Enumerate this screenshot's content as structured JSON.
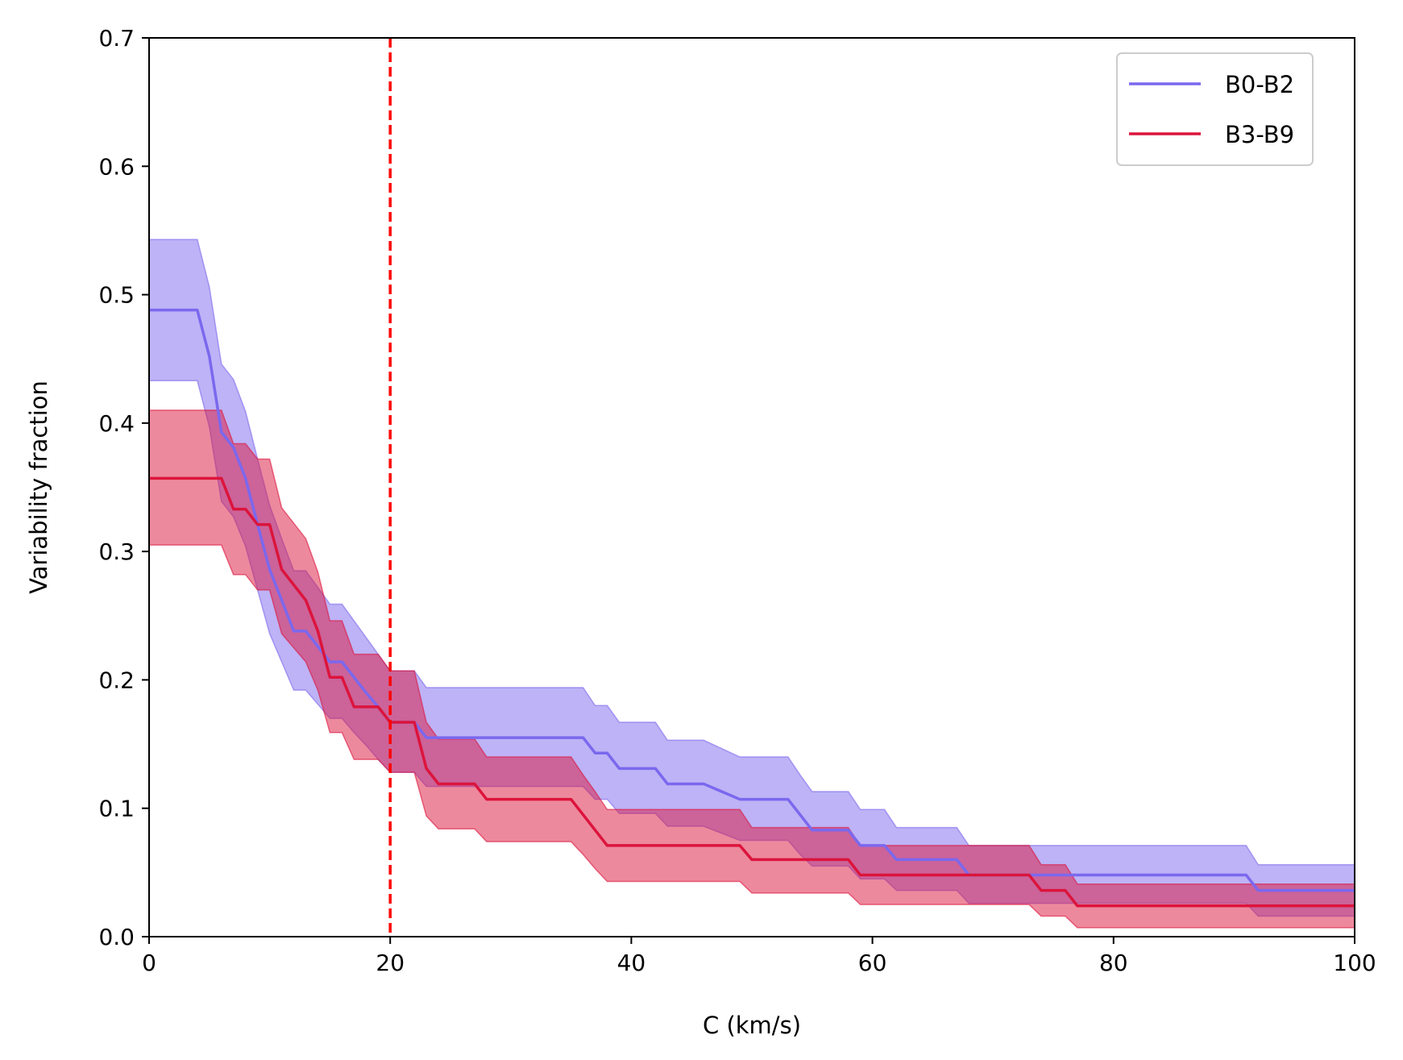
{
  "chart_data": {
    "type": "line",
    "title": "",
    "xlabel": "C (km/s)",
    "ylabel": "Variability fraction",
    "xlim": [
      0,
      100
    ],
    "ylim": [
      0,
      0.7
    ],
    "xticks": [
      0,
      20,
      40,
      60,
      80,
      100
    ],
    "xtick_labels": [
      "0",
      "20",
      "40",
      "60",
      "80",
      "100"
    ],
    "yticks": [
      0.0,
      0.1,
      0.2,
      0.3,
      0.4,
      0.5,
      0.6,
      0.7
    ],
    "ytick_labels": [
      "0.0",
      "0.1",
      "0.2",
      "0.3",
      "0.4",
      "0.5",
      "0.6",
      "0.7"
    ],
    "grid": false,
    "legend_position": "top-right",
    "reference_line": {
      "x": 20,
      "style": "dashed",
      "color": "#ff0000"
    },
    "series": [
      {
        "name": "B0-B2",
        "color": "#7b68ee",
        "band_color": "#7b68ee",
        "x": [
          0,
          4,
          5,
          6,
          7,
          8,
          9,
          10,
          11,
          12,
          13,
          14,
          15,
          16,
          17,
          18,
          19,
          20,
          21,
          22,
          23,
          36,
          37,
          38,
          39,
          40,
          41,
          42,
          43,
          46,
          49,
          50,
          53,
          54,
          55,
          56,
          58,
          59,
          60,
          61,
          62,
          65,
          66,
          67,
          68,
          73,
          74,
          91,
          92,
          100
        ],
        "y": [
          0.488,
          0.488,
          0.452,
          0.393,
          0.381,
          0.357,
          0.321,
          0.286,
          0.262,
          0.238,
          0.238,
          0.226,
          0.214,
          0.214,
          0.202,
          0.19,
          0.179,
          0.167,
          0.167,
          0.167,
          0.155,
          0.155,
          0.143,
          0.143,
          0.131,
          0.131,
          0.131,
          0.131,
          0.119,
          0.119,
          0.107,
          0.107,
          0.107,
          0.095,
          0.083,
          0.083,
          0.083,
          0.071,
          0.071,
          0.071,
          0.06,
          0.06,
          0.06,
          0.06,
          0.048,
          0.048,
          0.048,
          0.048,
          0.036,
          0.036
        ],
        "lower": [
          0.433,
          0.433,
          0.397,
          0.339,
          0.327,
          0.304,
          0.27,
          0.236,
          0.214,
          0.192,
          0.192,
          0.181,
          0.17,
          0.17,
          0.159,
          0.149,
          0.138,
          0.128,
          0.128,
          0.128,
          0.117,
          0.117,
          0.107,
          0.107,
          0.096,
          0.096,
          0.096,
          0.096,
          0.086,
          0.086,
          0.075,
          0.075,
          0.075,
          0.064,
          0.055,
          0.055,
          0.055,
          0.045,
          0.045,
          0.045,
          0.036,
          0.036,
          0.036,
          0.036,
          0.026,
          0.026,
          0.026,
          0.026,
          0.016,
          0.016
        ],
        "upper": [
          0.543,
          0.543,
          0.506,
          0.446,
          0.434,
          0.409,
          0.372,
          0.336,
          0.31,
          0.285,
          0.285,
          0.272,
          0.259,
          0.259,
          0.246,
          0.233,
          0.22,
          0.207,
          0.207,
          0.207,
          0.194,
          0.194,
          0.18,
          0.18,
          0.167,
          0.167,
          0.167,
          0.167,
          0.153,
          0.153,
          0.14,
          0.14,
          0.14,
          0.126,
          0.113,
          0.113,
          0.113,
          0.099,
          0.099,
          0.099,
          0.085,
          0.085,
          0.085,
          0.085,
          0.071,
          0.071,
          0.071,
          0.071,
          0.056,
          0.056
        ]
      },
      {
        "name": "B3-B9",
        "color": "#dc143c",
        "band_color": "#dc143c",
        "x": [
          0,
          4,
          5,
          6,
          7,
          8,
          9,
          10,
          11,
          12,
          13,
          14,
          15,
          16,
          17,
          18,
          19,
          20,
          21,
          22,
          23,
          24,
          25,
          26,
          27,
          28,
          29,
          35,
          36,
          37,
          38,
          39,
          40,
          49,
          50,
          51,
          58,
          59,
          60,
          61,
          72,
          73,
          74,
          75,
          76,
          77,
          78,
          100
        ],
        "y": [
          0.357,
          0.357,
          0.357,
          0.357,
          0.333,
          0.333,
          0.321,
          0.321,
          0.286,
          0.274,
          0.262,
          0.238,
          0.202,
          0.202,
          0.179,
          0.179,
          0.179,
          0.167,
          0.167,
          0.167,
          0.131,
          0.119,
          0.119,
          0.119,
          0.119,
          0.107,
          0.107,
          0.107,
          0.095,
          0.083,
          0.071,
          0.071,
          0.071,
          0.071,
          0.06,
          0.06,
          0.06,
          0.048,
          0.048,
          0.048,
          0.048,
          0.048,
          0.036,
          0.036,
          0.036,
          0.024,
          0.024,
          0.024
        ],
        "lower": [
          0.305,
          0.305,
          0.305,
          0.305,
          0.282,
          0.282,
          0.27,
          0.27,
          0.236,
          0.225,
          0.214,
          0.192,
          0.159,
          0.159,
          0.138,
          0.138,
          0.138,
          0.128,
          0.128,
          0.128,
          0.094,
          0.084,
          0.084,
          0.084,
          0.084,
          0.074,
          0.074,
          0.074,
          0.064,
          0.053,
          0.043,
          0.043,
          0.043,
          0.043,
          0.034,
          0.034,
          0.034,
          0.025,
          0.025,
          0.025,
          0.025,
          0.025,
          0.016,
          0.016,
          0.016,
          0.007,
          0.007,
          0.007
        ],
        "upper": [
          0.41,
          0.41,
          0.41,
          0.41,
          0.384,
          0.384,
          0.372,
          0.372,
          0.334,
          0.322,
          0.31,
          0.284,
          0.246,
          0.246,
          0.22,
          0.22,
          0.22,
          0.207,
          0.207,
          0.207,
          0.167,
          0.154,
          0.154,
          0.154,
          0.154,
          0.14,
          0.14,
          0.14,
          0.126,
          0.113,
          0.099,
          0.099,
          0.099,
          0.099,
          0.085,
          0.085,
          0.085,
          0.071,
          0.071,
          0.071,
          0.071,
          0.071,
          0.056,
          0.056,
          0.056,
          0.041,
          0.041,
          0.041
        ]
      }
    ]
  }
}
